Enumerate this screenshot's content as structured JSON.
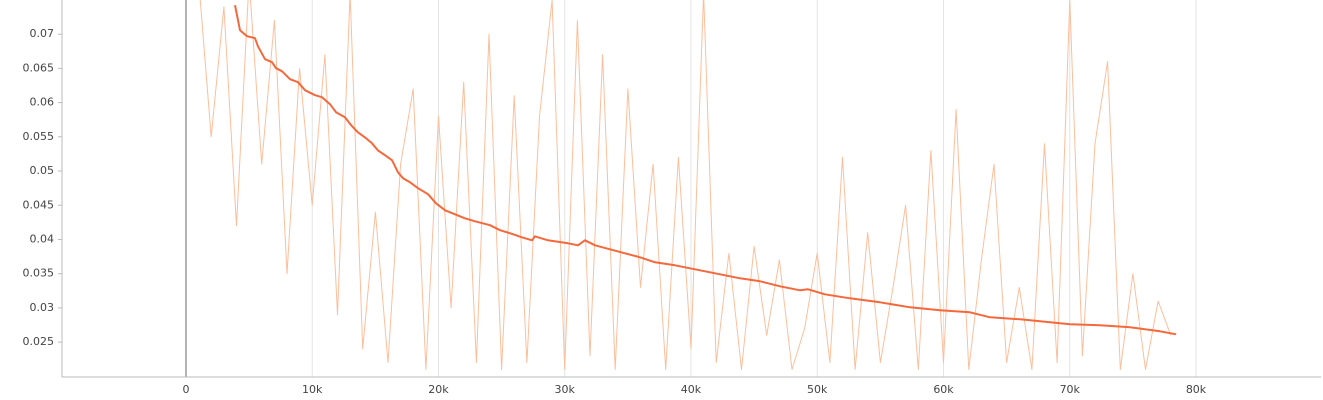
{
  "chart_data": {
    "type": "line",
    "xlim": [
      -9820,
      89900
    ],
    "ylim": [
      0.0199,
      0.075
    ],
    "xticks": [
      0,
      {
        "value": 10000,
        "label": "10k"
      },
      {
        "value": 20000,
        "label": "20k"
      },
      {
        "value": 30000,
        "label": "30k"
      },
      {
        "value": 40000,
        "label": "40k"
      },
      {
        "value": 50000,
        "label": "50k"
      },
      {
        "value": 60000,
        "label": "60k"
      },
      {
        "value": 70000,
        "label": "70k"
      },
      {
        "value": 80000,
        "label": "80k"
      }
    ],
    "yticks": [
      0.025,
      0.03,
      0.035,
      0.04,
      0.045,
      0.05,
      0.055,
      0.06,
      0.065,
      0.07
    ],
    "xgrid": true,
    "ygrid": false,
    "series": [
      {
        "color": "#fbbf9c",
        "width": 1,
        "x": [
          1000,
          2000,
          3000,
          4000,
          5000,
          6000,
          7000,
          8000,
          9000,
          10000,
          11000,
          12000,
          13000,
          14000,
          15000,
          16000,
          17000,
          18000,
          19000,
          20000,
          21000,
          22000,
          23000,
          24000,
          25000,
          26000,
          27000,
          28000,
          29000,
          30000,
          31000,
          32000,
          33000,
          34000,
          35000,
          36000,
          37000,
          38000,
          39000,
          40000,
          41000,
          42000,
          43000,
          44000,
          45000,
          46000,
          47000,
          48000,
          49000,
          50000,
          51000,
          52000,
          53000,
          54000,
          55000,
          56000,
          57000,
          58000,
          59000,
          60000,
          61000,
          62000,
          63000,
          64000,
          65000,
          66000,
          67000,
          68000,
          69000,
          70000,
          71000,
          72000,
          73000,
          74000,
          75000,
          76000,
          77000,
          78000
        ],
        "values": [
          0.078,
          0.055,
          0.074,
          0.042,
          0.078,
          0.051,
          0.072,
          0.035,
          0.065,
          0.045,
          0.067,
          0.029,
          0.076,
          0.024,
          0.044,
          0.022,
          0.051,
          0.062,
          0.021,
          0.058,
          0.03,
          0.063,
          0.022,
          0.07,
          0.021,
          0.061,
          0.022,
          0.058,
          0.075,
          0.021,
          0.072,
          0.023,
          0.067,
          0.021,
          0.062,
          0.033,
          0.051,
          0.021,
          0.052,
          0.024,
          0.076,
          0.022,
          0.038,
          0.021,
          0.039,
          0.026,
          0.037,
          0.021,
          0.027,
          0.038,
          0.022,
          0.052,
          0.021,
          0.041,
          0.022,
          0.033,
          0.045,
          0.021,
          0.053,
          0.022,
          0.059,
          0.021,
          0.037,
          0.051,
          0.022,
          0.033,
          0.021,
          0.054,
          0.022,
          0.075,
          0.023,
          0.054,
          0.066,
          0.021,
          0.035,
          0.021,
          0.031,
          0.026
        ]
      },
      {
        "color": "#f4683c",
        "width": 2,
        "x": [
          3880,
          4280,
          4830,
          5470,
          5700,
          6260,
          6810,
          7130,
          7600,
          8240,
          8870,
          9430,
          10220,
          10770,
          11410,
          11880,
          12590,
          13150,
          13620,
          14260,
          14730,
          15210,
          15760,
          16320,
          16790,
          17190,
          17740,
          18380,
          19170,
          19800,
          20520,
          21310,
          22100,
          22890,
          24080,
          24870,
          25660,
          26610,
          27410,
          27640,
          28670,
          30260,
          31050,
          31600,
          32400,
          33580,
          34770,
          35960,
          37150,
          38730,
          40710,
          42300,
          43880,
          45470,
          47050,
          48630,
          49270,
          50610,
          52590,
          54970,
          57350,
          59720,
          62100,
          63680,
          66060,
          68440,
          70020,
          72400,
          74770,
          77150,
          78420
        ],
        "values": [
          0.07424,
          0.07058,
          0.06971,
          0.06942,
          0.06825,
          0.06635,
          0.06591,
          0.06503,
          0.06459,
          0.06342,
          0.06298,
          0.06181,
          0.06108,
          0.06079,
          0.05977,
          0.0586,
          0.05787,
          0.05655,
          0.05567,
          0.0548,
          0.05406,
          0.053,
          0.05231,
          0.05158,
          0.04982,
          0.04895,
          0.04836,
          0.04749,
          0.04661,
          0.04529,
          0.04427,
          0.04368,
          0.0431,
          0.04266,
          0.04208,
          0.04135,
          0.04091,
          0.04032,
          0.03988,
          0.04047,
          0.03988,
          0.03944,
          0.03915,
          0.03988,
          0.03915,
          0.03857,
          0.03798,
          0.0374,
          0.03667,
          0.03623,
          0.0355,
          0.03491,
          0.03433,
          0.03389,
          0.03316,
          0.03257,
          0.03272,
          0.03199,
          0.0314,
          0.03082,
          0.03009,
          0.02965,
          0.02936,
          0.02862,
          0.02833,
          0.02789,
          0.0276,
          0.02746,
          0.02716,
          0.02658,
          0.02614
        ]
      }
    ]
  }
}
